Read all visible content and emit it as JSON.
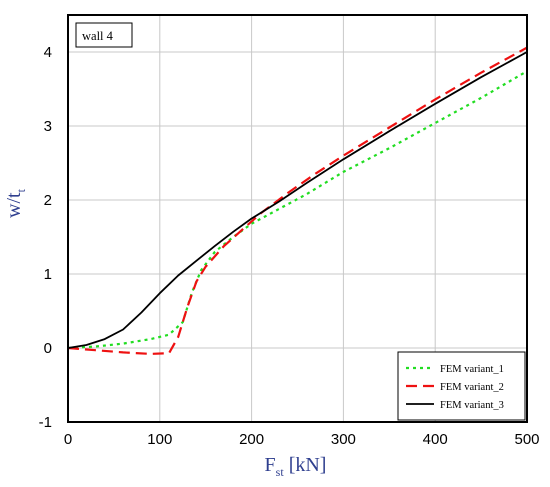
{
  "chart_data": {
    "type": "line",
    "annotation": "wall 4",
    "xlabel": {
      "main": "F",
      "sub": "st",
      "unit": " [kN]"
    },
    "ylabel": {
      "main": "w/t",
      "sub": "t"
    },
    "xlim": [
      0,
      500
    ],
    "ylim": [
      -1,
      4.5
    ],
    "xticks": [
      "0",
      "100",
      "200",
      "300",
      "400",
      "500"
    ],
    "yticks": [
      "-1",
      "0",
      "1",
      "2",
      "3",
      "4"
    ],
    "grid": true,
    "legend_position": "bottom-right",
    "series": [
      {
        "name": "FEM variant_1",
        "color": "#22dd22",
        "dash": "dotted",
        "x": [
          0,
          30,
          60,
          90,
          110,
          125,
          135,
          145,
          160,
          180,
          200,
          230,
          260,
          300,
          350,
          400,
          450,
          500
        ],
        "y": [
          0,
          0.02,
          0.06,
          0.12,
          0.18,
          0.35,
          0.75,
          1.05,
          1.3,
          1.5,
          1.68,
          1.88,
          2.08,
          2.38,
          2.7,
          3.04,
          3.38,
          3.74
        ]
      },
      {
        "name": "FEM variant_2",
        "color": "#ee1111",
        "dash": "dashed",
        "x": [
          0,
          30,
          60,
          90,
          110,
          120,
          130,
          140,
          150,
          170,
          190,
          210,
          240,
          270,
          300,
          350,
          400,
          450,
          500
        ],
        "y": [
          0,
          -0.03,
          -0.06,
          -0.08,
          -0.07,
          0.15,
          0.55,
          0.9,
          1.1,
          1.38,
          1.6,
          1.82,
          2.1,
          2.36,
          2.6,
          2.98,
          3.36,
          3.72,
          4.06
        ]
      },
      {
        "name": "FEM variant_3",
        "color": "#000000",
        "dash": "solid",
        "x": [
          0,
          20,
          40,
          60,
          80,
          100,
          120,
          140,
          160,
          180,
          200,
          230,
          260,
          300,
          350,
          400,
          450,
          500
        ],
        "y": [
          0,
          0.04,
          0.12,
          0.25,
          0.48,
          0.74,
          0.98,
          1.18,
          1.38,
          1.57,
          1.75,
          1.98,
          2.23,
          2.55,
          2.93,
          3.3,
          3.66,
          4.0
        ]
      }
    ]
  }
}
